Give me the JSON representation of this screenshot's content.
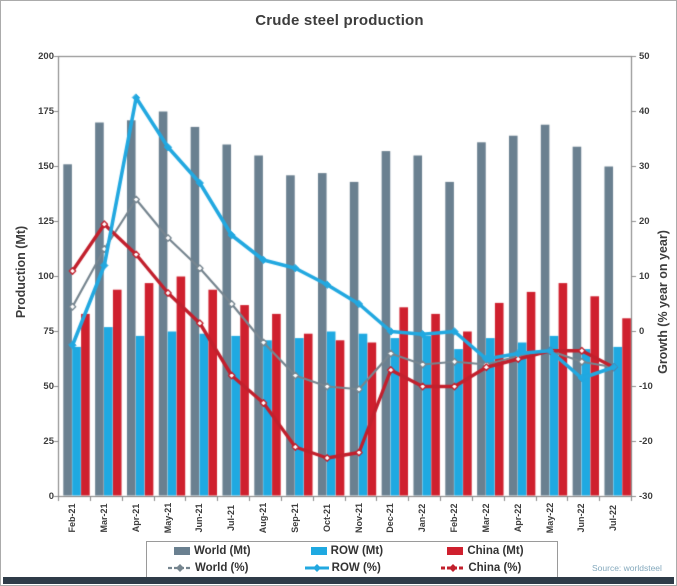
{
  "colors": {
    "axis": "#8c8c8c",
    "text": "#3d3d3d",
    "world_bar": "#6a8090",
    "row_bar": "#1fa9e1",
    "china_bar": "#cf202e",
    "world_line": "#76858f",
    "row_line": "#22a8e0",
    "china_line": "#c2202d",
    "source_text": "#84a9bd",
    "legend_border": "#9a9a9a",
    "bottom_bar": "#2e3b48",
    "background": "#ffffff"
  },
  "source": "Source: worldsteel",
  "chart_data": {
    "type": "combo-bar-line",
    "title": "Crude steel production",
    "ylabel_left": "Production (Mt)",
    "ylabel_right": "Growth (% year on year)",
    "ylim_left": [
      0,
      200
    ],
    "ylim_right": [
      -30,
      50
    ],
    "yticks_left": [
      0,
      25,
      50,
      75,
      100,
      125,
      150,
      175,
      200
    ],
    "yticks_right": [
      -30,
      -20,
      -10,
      0,
      10,
      20,
      30,
      40,
      50
    ],
    "grid": false,
    "legend_position": "bottom",
    "categories": [
      "Feb-21",
      "Mar-21",
      "Apr-21",
      "May-21",
      "Jun-21",
      "Jul-21",
      "Aug-21",
      "Sep-21",
      "Oct-21",
      "Nov-21",
      "Dec-21",
      "Jan-22",
      "Feb-22",
      "Mar-22",
      "Apr-22",
      "May-22",
      "Jun-22",
      "Jul-22"
    ],
    "series": [
      {
        "name": "World (Mt)",
        "type": "bar",
        "axis": "left",
        "color": "#6a8090",
        "z": 1,
        "values": [
          151,
          170,
          171,
          175,
          168,
          160,
          155,
          146,
          147,
          143,
          157,
          155,
          143,
          161,
          164,
          169,
          159,
          150
        ]
      },
      {
        "name": "ROW (Mt)",
        "type": "bar",
        "axis": "left",
        "color": "#1fa9e1",
        "z": 1,
        "values": [
          68,
          77,
          73,
          75,
          74,
          73,
          71,
          72,
          75,
          74,
          72,
          73,
          67,
          72,
          70,
          73,
          67,
          68
        ]
      },
      {
        "name": "China (Mt)",
        "type": "bar",
        "axis": "left",
        "color": "#cf202e",
        "z": 1,
        "values": [
          83,
          94,
          97,
          100,
          94,
          87,
          83,
          74,
          71,
          70,
          86,
          83,
          75,
          88,
          93,
          97,
          91,
          81
        ]
      },
      {
        "name": "World (%)",
        "type": "line",
        "axis": "right",
        "color": "#76858f",
        "z": 2,
        "width": 2.2,
        "marker": "open",
        "legend_dash": true,
        "values": [
          4.5,
          15,
          24,
          17,
          11.5,
          5,
          -2,
          -8,
          -10,
          -10.5,
          -4,
          -6,
          -5.5,
          -6,
          -4.5,
          -3.5,
          -5.5,
          -6.5
        ]
      },
      {
        "name": "ROW (%)",
        "type": "line",
        "axis": "right",
        "color": "#22a8e0",
        "z": 4,
        "width": 3.6,
        "marker": "filled",
        "legend_dash": false,
        "values": [
          -2.5,
          12,
          42.5,
          33.5,
          27,
          17.5,
          13,
          11.5,
          8.5,
          5,
          0,
          -0.5,
          0,
          -5,
          -4,
          -3.5,
          -8.5,
          -6.5
        ]
      },
      {
        "name": "China (%)",
        "type": "line",
        "axis": "right",
        "color": "#c2202d",
        "z": 3,
        "width": 3.4,
        "marker": "open",
        "legend_dash": true,
        "values": [
          11,
          19.5,
          14,
          7,
          1.5,
          -8,
          -13,
          -21,
          -23,
          -22,
          -7,
          -10,
          -10,
          -6.5,
          -5,
          -3.5,
          -3.5,
          -6.5
        ]
      }
    ]
  }
}
